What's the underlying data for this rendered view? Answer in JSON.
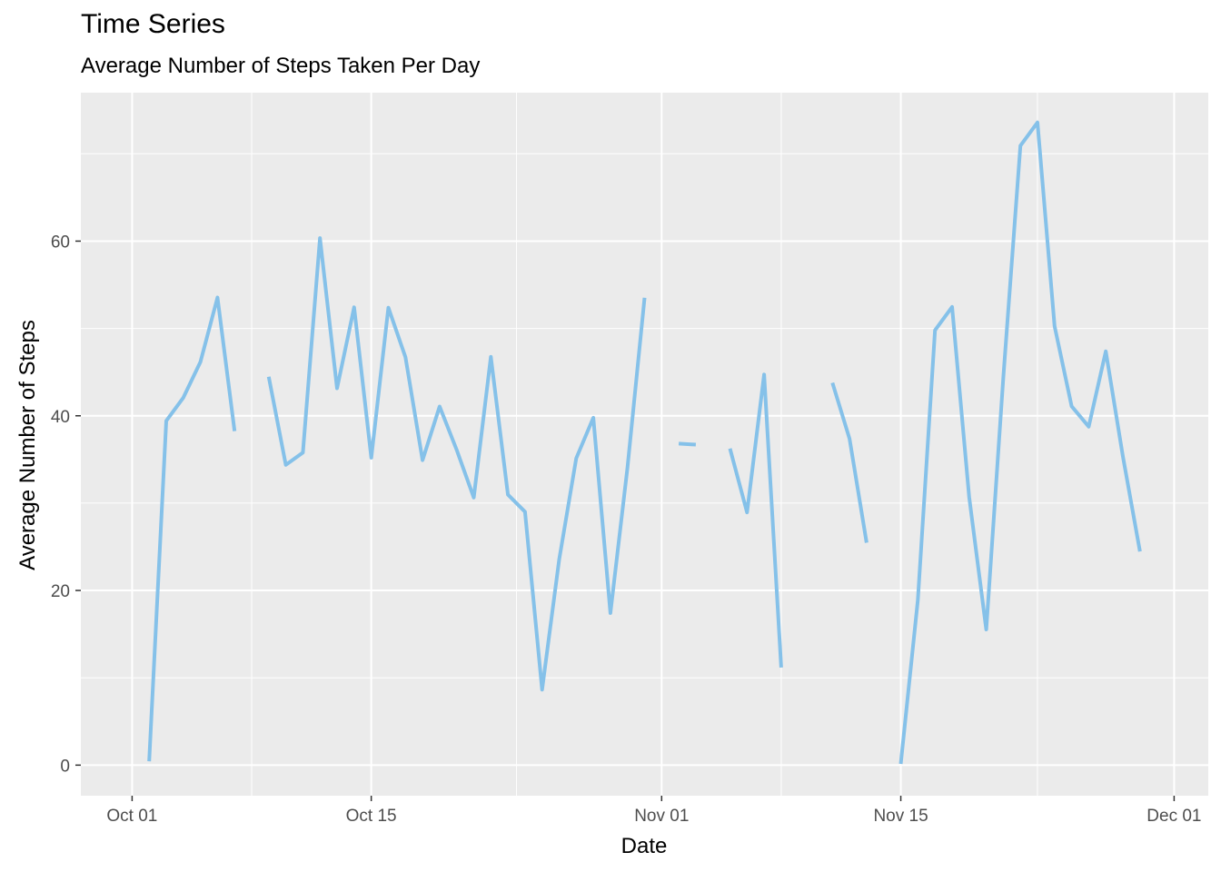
{
  "chart_data": {
    "type": "line",
    "title": "Time Series",
    "subtitle": "Average Number of Steps Taken Per Day",
    "xlabel": "Date",
    "ylabel": "Average Number of Steps",
    "x_tick_labels": [
      "Oct 01",
      "Oct 15",
      "Nov 01",
      "Nov 15",
      "Dec 01"
    ],
    "x_ticks": [
      "2012-10-01",
      "2012-10-15",
      "2012-11-01",
      "2012-11-15",
      "2012-12-01"
    ],
    "y_ticks": [
      0,
      20,
      40,
      60
    ],
    "xlim": [
      "2012-09-28",
      "2012-12-03"
    ],
    "ylim": [
      -3.5,
      77
    ],
    "grid": true,
    "line_color": "#85C1E9",
    "panel_background": "#EBEBEB",
    "series": [
      {
        "x": [
          "2012-10-01",
          "2012-10-02",
          "2012-10-03",
          "2012-10-04",
          "2012-10-05",
          "2012-10-06",
          "2012-10-07",
          "2012-10-08",
          "2012-10-09",
          "2012-10-10",
          "2012-10-11",
          "2012-10-12",
          "2012-10-13",
          "2012-10-14",
          "2012-10-15",
          "2012-10-16",
          "2012-10-17",
          "2012-10-18",
          "2012-10-19",
          "2012-10-20",
          "2012-10-21",
          "2012-10-22",
          "2012-10-23",
          "2012-10-24",
          "2012-10-25",
          "2012-10-26",
          "2012-10-27",
          "2012-10-28",
          "2012-10-29",
          "2012-10-30",
          "2012-10-31",
          "2012-11-01",
          "2012-11-02",
          "2012-11-03",
          "2012-11-04",
          "2012-11-05",
          "2012-11-06",
          "2012-11-07",
          "2012-11-08",
          "2012-11-09",
          "2012-11-10",
          "2012-11-11",
          "2012-11-12",
          "2012-11-13",
          "2012-11-14",
          "2012-11-15",
          "2012-11-16",
          "2012-11-17",
          "2012-11-18",
          "2012-11-19",
          "2012-11-20",
          "2012-11-21",
          "2012-11-22",
          "2012-11-23",
          "2012-11-24",
          "2012-11-25",
          "2012-11-26",
          "2012-11-27",
          "2012-11-28",
          "2012-11-29",
          "2012-11-30"
        ],
        "y": [
          null,
          0.44,
          39.42,
          42.07,
          46.16,
          53.54,
          38.25,
          null,
          44.48,
          34.38,
          35.78,
          60.35,
          43.15,
          52.42,
          35.2,
          52.38,
          46.71,
          34.92,
          41.07,
          36.09,
          30.63,
          46.74,
          30.97,
          29.01,
          8.65,
          23.53,
          35.14,
          39.78,
          17.42,
          34.09,
          53.52,
          null,
          36.81,
          36.7,
          null,
          36.25,
          28.94,
          44.73,
          11.18,
          null,
          null,
          43.78,
          37.38,
          25.47,
          null,
          0.14,
          18.89,
          49.79,
          52.47,
          30.7,
          15.53,
          44.4,
          70.93,
          73.59,
          50.27,
          41.09,
          38.76,
          47.38,
          35.36,
          24.47,
          null
        ]
      }
    ]
  }
}
